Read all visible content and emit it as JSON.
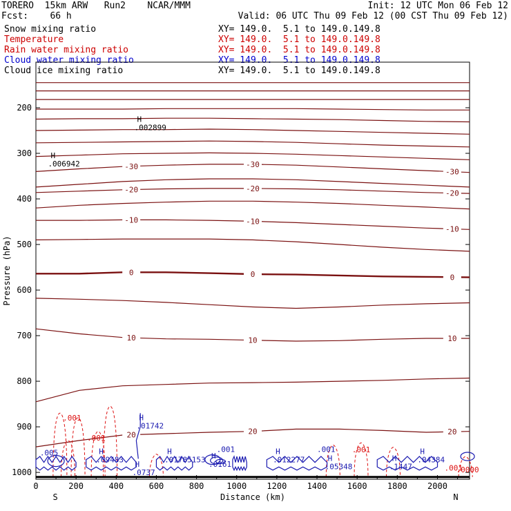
{
  "header": {
    "model": "TORERO  15km ARW   Run2    NCAR/MMM",
    "init": "Init: 12 UTC Mon 06 Feb 12",
    "fcst": "Fcst:    66 h",
    "valid": "Valid: 06 UTC Thu 09 Feb 12 (00 CST Thu 09 Feb 12)"
  },
  "fields": [
    {
      "name": "Snow mixing ratio",
      "xy": "XY= 149.0.  5.1 to 149.0.149.8",
      "color": "#000000"
    },
    {
      "name": "Temperature",
      "xy": "XY= 149.0.  5.1 to 149.0.149.8",
      "color": "#cc0000"
    },
    {
      "name": "Rain water mixing ratio",
      "xy": "XY= 149.0.  5.1 to 149.0.149.8",
      "color": "#cc0000"
    },
    {
      "name": "Cloud water mixing ratio",
      "xy": "XY= 149.0.  5.1 to 149.0.149.8",
      "color": "#0000cc"
    },
    {
      "name": "Cloud ice mixing ratio",
      "xy": "XY= 149.0.  5.1 to 149.0.149.8",
      "color": "#000000"
    }
  ],
  "colors": {
    "temperature": "#7a1010",
    "rain": "#dd1111",
    "cloud_water": "#1a1ab0",
    "ground": "#000000"
  },
  "chart_data": {
    "type": "line",
    "xlabel": "Distance (km)",
    "ylabel": "Pressure (hPa)",
    "xlim": [
      0,
      2160
    ],
    "ylim": [
      1015,
      100
    ],
    "xticks": [
      0,
      200,
      400,
      600,
      800,
      1000,
      1200,
      1400,
      1600,
      1800,
      2000
    ],
    "yticks": [
      200,
      300,
      400,
      500,
      600,
      700,
      800,
      900,
      1000
    ],
    "end_labels": {
      "left": "S",
      "right": "N"
    },
    "isotherms_y": [
      {
        "temp": "",
        "p": [
          145,
          145,
          145,
          145,
          145,
          145,
          145,
          145,
          145,
          145,
          145
        ]
      },
      {
        "temp": "",
        "p": [
          163,
          163,
          163,
          163,
          163,
          163,
          163,
          163,
          163,
          163,
          163
        ]
      },
      {
        "temp": "",
        "p": [
          182,
          182,
          182,
          182,
          182,
          182,
          182,
          182,
          182,
          182,
          182
        ]
      },
      {
        "temp": "",
        "p": [
          203,
          203,
          203,
          202,
          202,
          202,
          202,
          203,
          204,
          205,
          205
        ]
      },
      {
        "temp": "",
        "p": [
          225,
          224,
          224,
          223,
          223,
          224,
          225,
          226,
          228,
          230,
          231
        ]
      },
      {
        "temp": "",
        "p": [
          250,
          249,
          248,
          248,
          247,
          248,
          250,
          252,
          254,
          256,
          258
        ]
      },
      {
        "temp": "",
        "p": [
          277,
          276,
          275,
          274,
          273,
          274,
          276,
          279,
          282,
          284,
          286
        ]
      },
      {
        "temp": "",
        "p": [
          307,
          304,
          301,
          300,
          299,
          300,
          302,
          305,
          308,
          311,
          314
        ]
      },
      {
        "temp": "-30",
        "p": [
          340,
          334,
          329,
          326,
          324,
          324,
          326,
          330,
          334,
          338,
          342
        ]
      },
      {
        "temp": "",
        "p": [
          374,
          368,
          362,
          358,
          356,
          356,
          358,
          362,
          366,
          370,
          374
        ]
      },
      {
        "temp": "-20",
        "p": [
          386,
          383,
          380,
          378,
          377,
          377,
          378,
          380,
          383,
          386,
          388
        ]
      },
      {
        "temp": "",
        "p": [
          420,
          414,
          410,
          407,
          405,
          405,
          407,
          410,
          414,
          418,
          422
        ]
      },
      {
        "temp": "-10",
        "p": [
          447,
          447,
          446,
          446,
          447,
          449,
          452,
          456,
          460,
          464,
          467
        ]
      },
      {
        "temp": "",
        "p": [
          490,
          489,
          488,
          488,
          488,
          490,
          494,
          500,
          506,
          511,
          515
        ]
      },
      {
        "temp": "0",
        "p": [
          564,
          564,
          561,
          561,
          563,
          565,
          566,
          568,
          570,
          571,
          572
        ]
      },
      {
        "temp": "",
        "p": [
          618,
          620,
          623,
          627,
          632,
          637,
          640,
          637,
          633,
          630,
          628
        ]
      },
      {
        "temp": "10",
        "p": [
          685,
          696,
          704,
          707,
          708,
          710,
          712,
          711,
          708,
          706,
          706
        ]
      },
      {
        "temp": "",
        "p": [
          845,
          820,
          810,
          807,
          804,
          803,
          802,
          800,
          798,
          795,
          793
        ]
      },
      {
        "temp": "20",
        "p": [
          944,
          930,
          918,
          915,
          912,
          910,
          905,
          905,
          908,
          912,
          910
        ]
      }
    ],
    "rain_mixing_ratio_labels": [
      ".001",
      ".001",
      ".001",
      ".001",
      ".0000"
    ],
    "maxima_labels": [
      {
        "field": "snow",
        "label": "H",
        "value": ".002899",
        "x": 490,
        "p": 246
      },
      {
        "field": "snow",
        "label": "H",
        "value": ".006942",
        "x": 60,
        "p": 326
      },
      {
        "field": "cloud_water",
        "label": "H",
        "value": ".01742",
        "x": 500,
        "p": 901
      },
      {
        "field": "cloud_water",
        "label": "H",
        "value": ".09483",
        "x": 300,
        "p": 975
      },
      {
        "field": "cloud_water",
        "label": "H",
        "value": ".01785153",
        "x": 640,
        "p": 975
      },
      {
        "field": "cloud_water",
        "label": "H",
        "value": ".0737",
        "x": 480,
        "p": 1003
      },
      {
        "field": "cloud_water",
        "label": "H",
        "value": ".0161",
        "x": 860,
        "p": 985
      },
      {
        "field": "cloud_water",
        "label": "H",
        "value": ".012277",
        "x": 1180,
        "p": 975
      },
      {
        "field": "cloud_water",
        "label": "H",
        "value": ".05348",
        "x": 1440,
        "p": 990
      },
      {
        "field": "cloud_water",
        "label": "H",
        "value": ".1447",
        "x": 1760,
        "p": 990
      },
      {
        "field": "cloud_water",
        "label": "H",
        "value": ".04384",
        "x": 1900,
        "p": 975
      },
      {
        "field": "cloud_water",
        "label": "",
        "value": ".001",
        "x": 900,
        "p": 952
      },
      {
        "field": "cloud_water",
        "label": "",
        "value": ".001",
        "x": 1400,
        "p": 952
      },
      {
        "field": "cloud_water",
        "label": "",
        "value": ".005",
        "x": 20,
        "p": 960
      }
    ]
  }
}
